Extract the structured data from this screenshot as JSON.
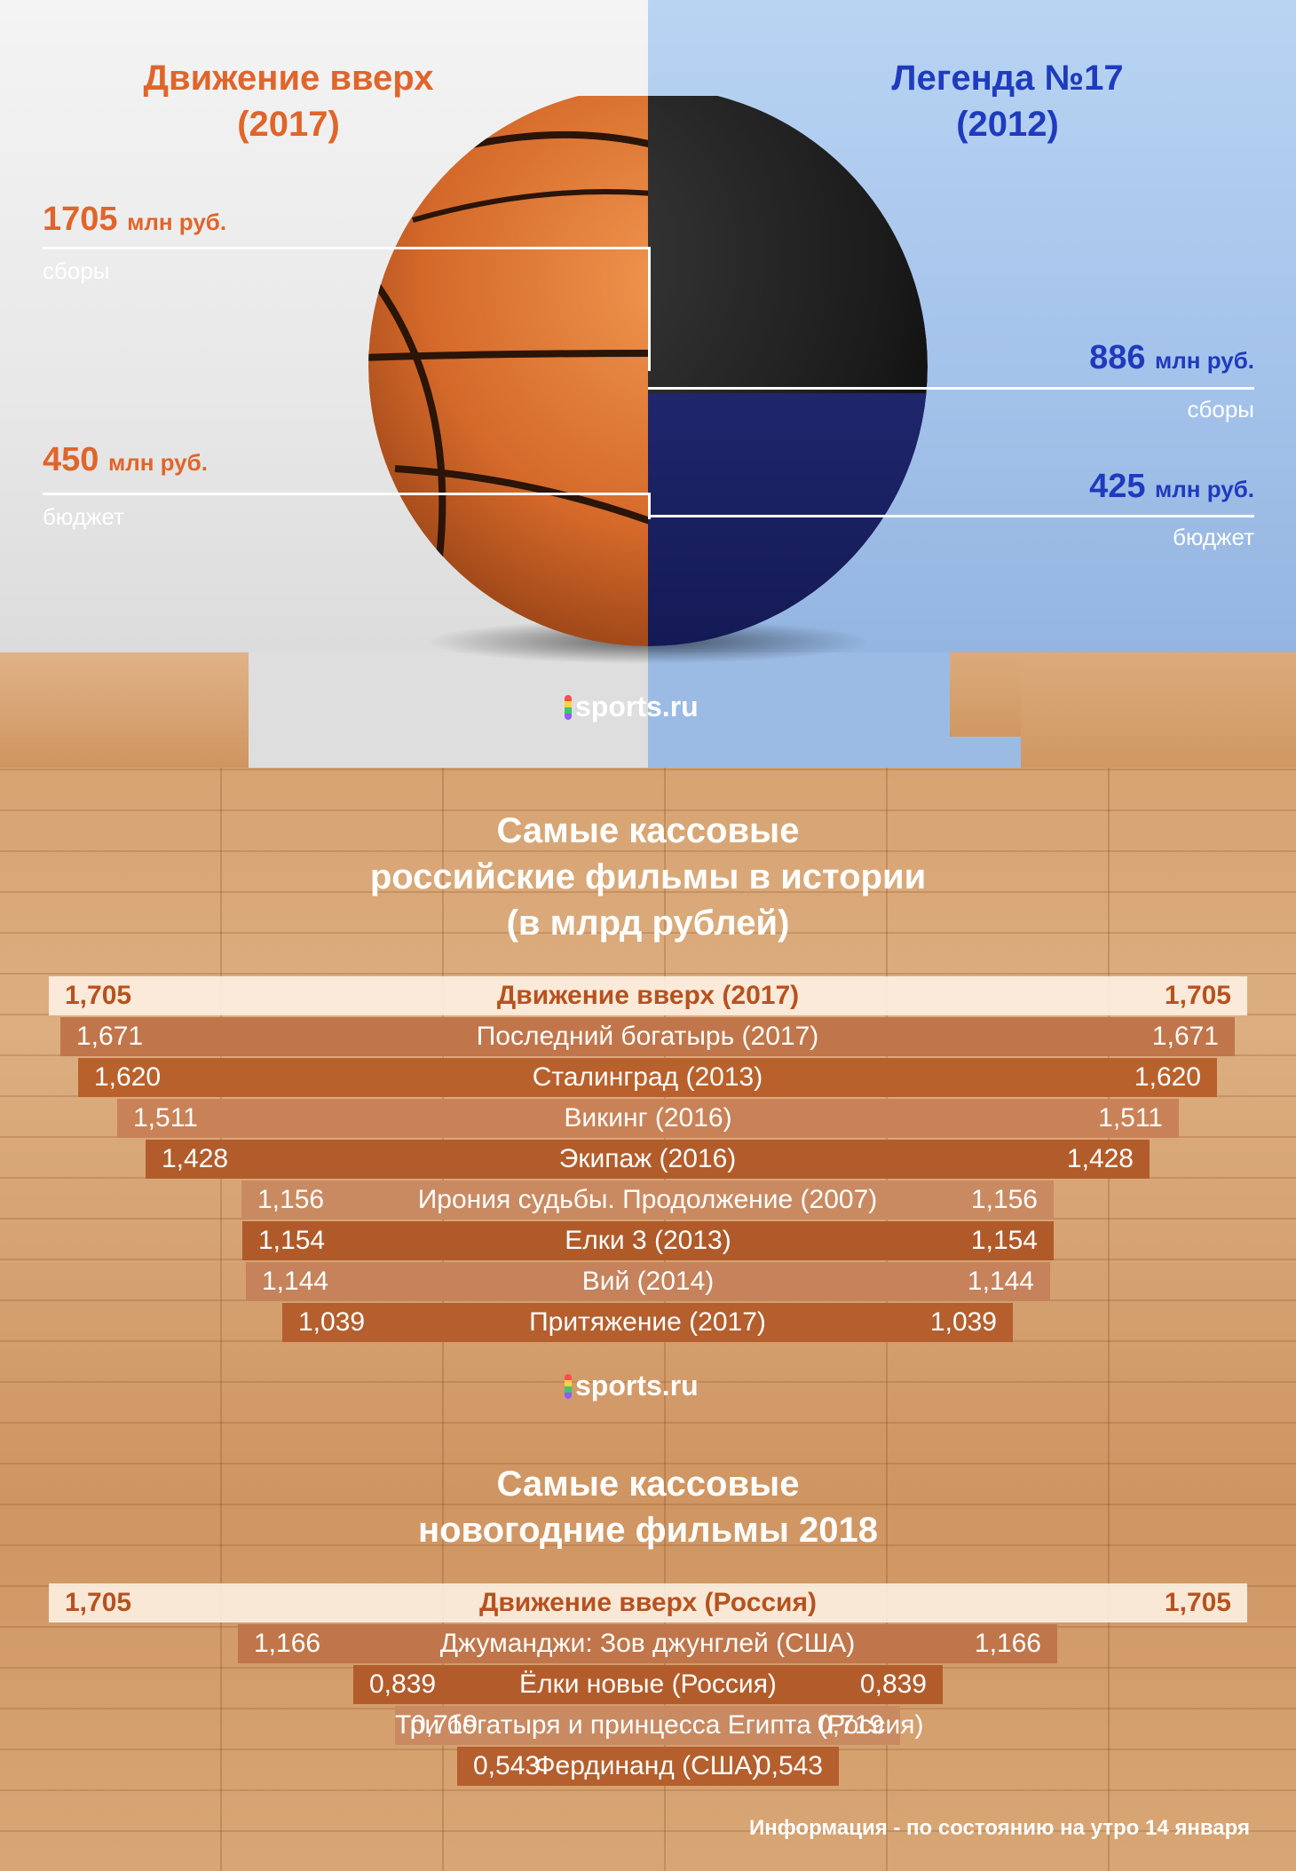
{
  "header": {
    "left": {
      "title_line1": "Движение вверх",
      "title_line2": "(2017)",
      "box_office_value": "1705",
      "box_office_unit": "млн руб.",
      "box_office_label": "сборы",
      "budget_value": "450",
      "budget_unit": "млн руб.",
      "budget_label": "бюджет",
      "color": "#e0652a"
    },
    "right": {
      "title_line1": "Легенда №17",
      "title_line2": "(2012)",
      "box_office_value": "886",
      "box_office_unit": "млн руб.",
      "box_office_label": "сборы",
      "budget_value": "425",
      "budget_unit": "млн руб.",
      "budget_label": "бюджет",
      "color": "#1f3bbd"
    }
  },
  "logo": {
    "text": "sports.ru"
  },
  "chart_data": [
    {
      "type": "bar",
      "title_lines": [
        "Самые кассовые",
        "российские фильмы в истории",
        "(в млрд рублей)"
      ],
      "categories": [
        "Движение вверх (2017)",
        "Последний богатырь (2017)",
        "Сталинград (2013)",
        "Викинг (2016)",
        "Экипаж (2016)",
        "Ирония судьбы. Продолжение (2007)",
        "Елки 3 (2013)",
        "Вий (2014)",
        "Притяжение (2017)"
      ],
      "values": [
        1.705,
        1.671,
        1.62,
        1.511,
        1.428,
        1.156,
        1.154,
        1.144,
        1.039
      ],
      "value_labels": [
        "1,705",
        "1,671",
        "1,620",
        "1,511",
        "1,428",
        "1,156",
        "1,154",
        "1,144",
        "1,039"
      ],
      "colors": [
        "#fbead8",
        "#c0764a",
        "#b9612c",
        "#c98257",
        "#b35c2b",
        "#c98a62",
        "#b05a2a",
        "#c5825b",
        "#b45f2d"
      ]
    },
    {
      "type": "bar",
      "title_lines": [
        "Самые кассовые",
        "новогодние фильмы 2018"
      ],
      "categories": [
        "Движение вверх (Россия)",
        "Джуманджи: Зов джунглей (США)",
        "Ёлки новые (Россия)",
        "Три богатыря и принцесса Египта (Россия)",
        "Фердинанд (США)"
      ],
      "values": [
        1.705,
        1.166,
        0.839,
        0.719,
        0.543
      ],
      "value_labels": [
        "1,705",
        "1,166",
        "0,839",
        "0,719",
        "0,543"
      ],
      "colors": [
        "#fbead8",
        "#c0764a",
        "#b35c2b",
        "#c98a62",
        "#b45f2d"
      ]
    }
  ],
  "footnote": "Информация - по состоянию на утро 14 января"
}
